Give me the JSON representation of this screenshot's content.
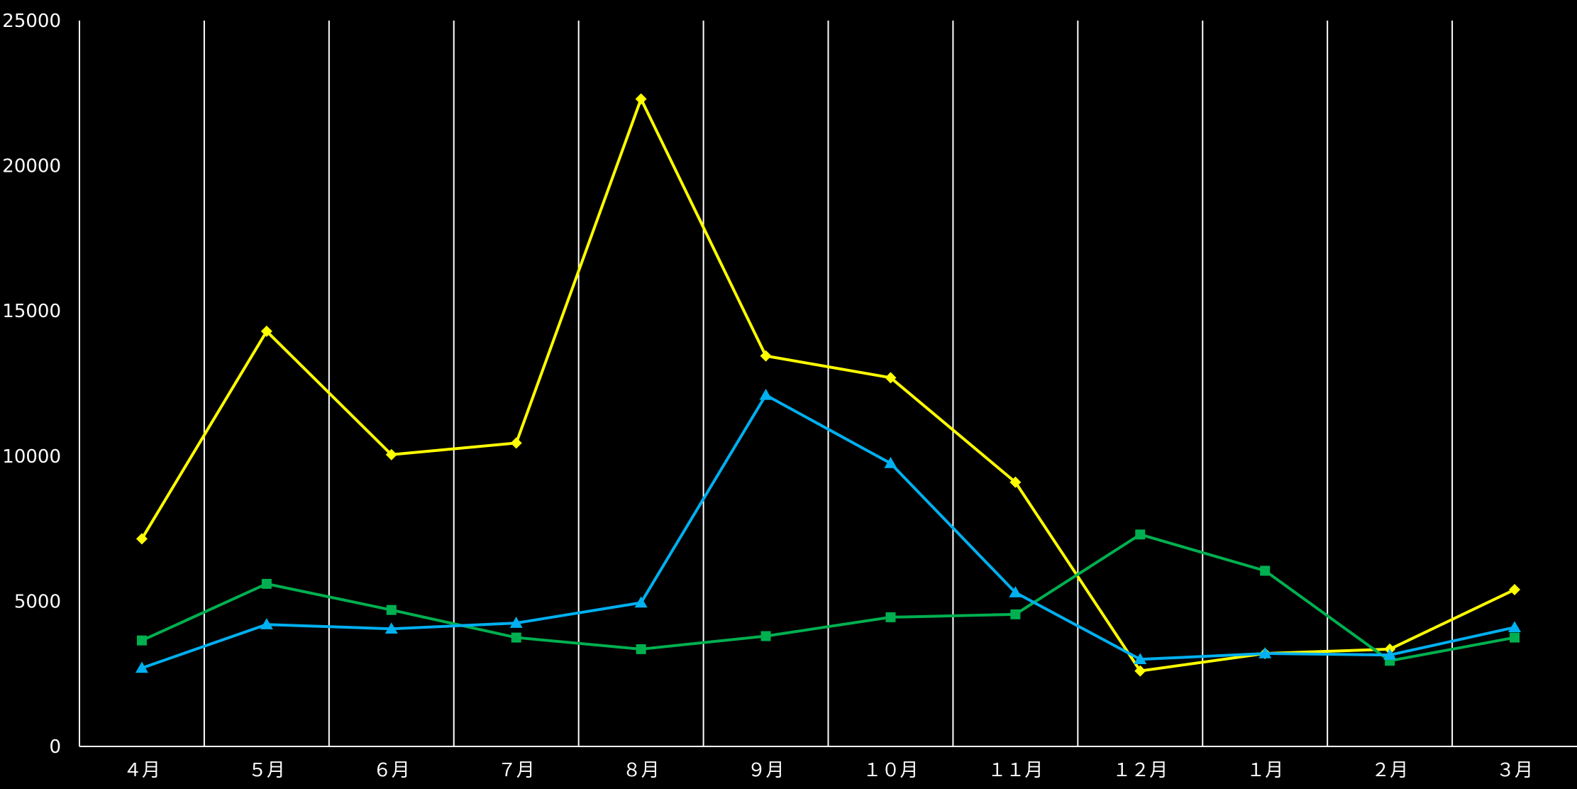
{
  "chart_data": {
    "type": "line",
    "title": "",
    "xlabel": "",
    "ylabel": "",
    "categories": [
      "４月",
      "５月",
      "６月",
      "７月",
      "８月",
      "９月",
      "１０月",
      "１１月",
      "１２月",
      "１月",
      "２月",
      "３月"
    ],
    "ylim": [
      0,
      25000
    ],
    "yticks": [
      0,
      5000,
      10000,
      15000,
      20000,
      25000
    ],
    "grid": {
      "vertical": true,
      "horizontal": false
    },
    "legend": "none",
    "series": [
      {
        "color": "#FFFF00",
        "marker": "diamond",
        "values": [
          7150,
          14300,
          10050,
          10450,
          22300,
          13450,
          12700,
          9100,
          2600,
          3200,
          3350,
          5400
        ]
      },
      {
        "color": "#00B050",
        "marker": "square",
        "values": [
          3650,
          5600,
          4700,
          3750,
          3350,
          3800,
          4450,
          4550,
          7300,
          6050,
          2950,
          3750
        ]
      },
      {
        "color": "#00B0F0",
        "marker": "triangle",
        "values": [
          2700,
          4200,
          4050,
          4250,
          4950,
          12100,
          9750,
          5300,
          3000,
          3200,
          3150,
          4100
        ]
      }
    ]
  }
}
